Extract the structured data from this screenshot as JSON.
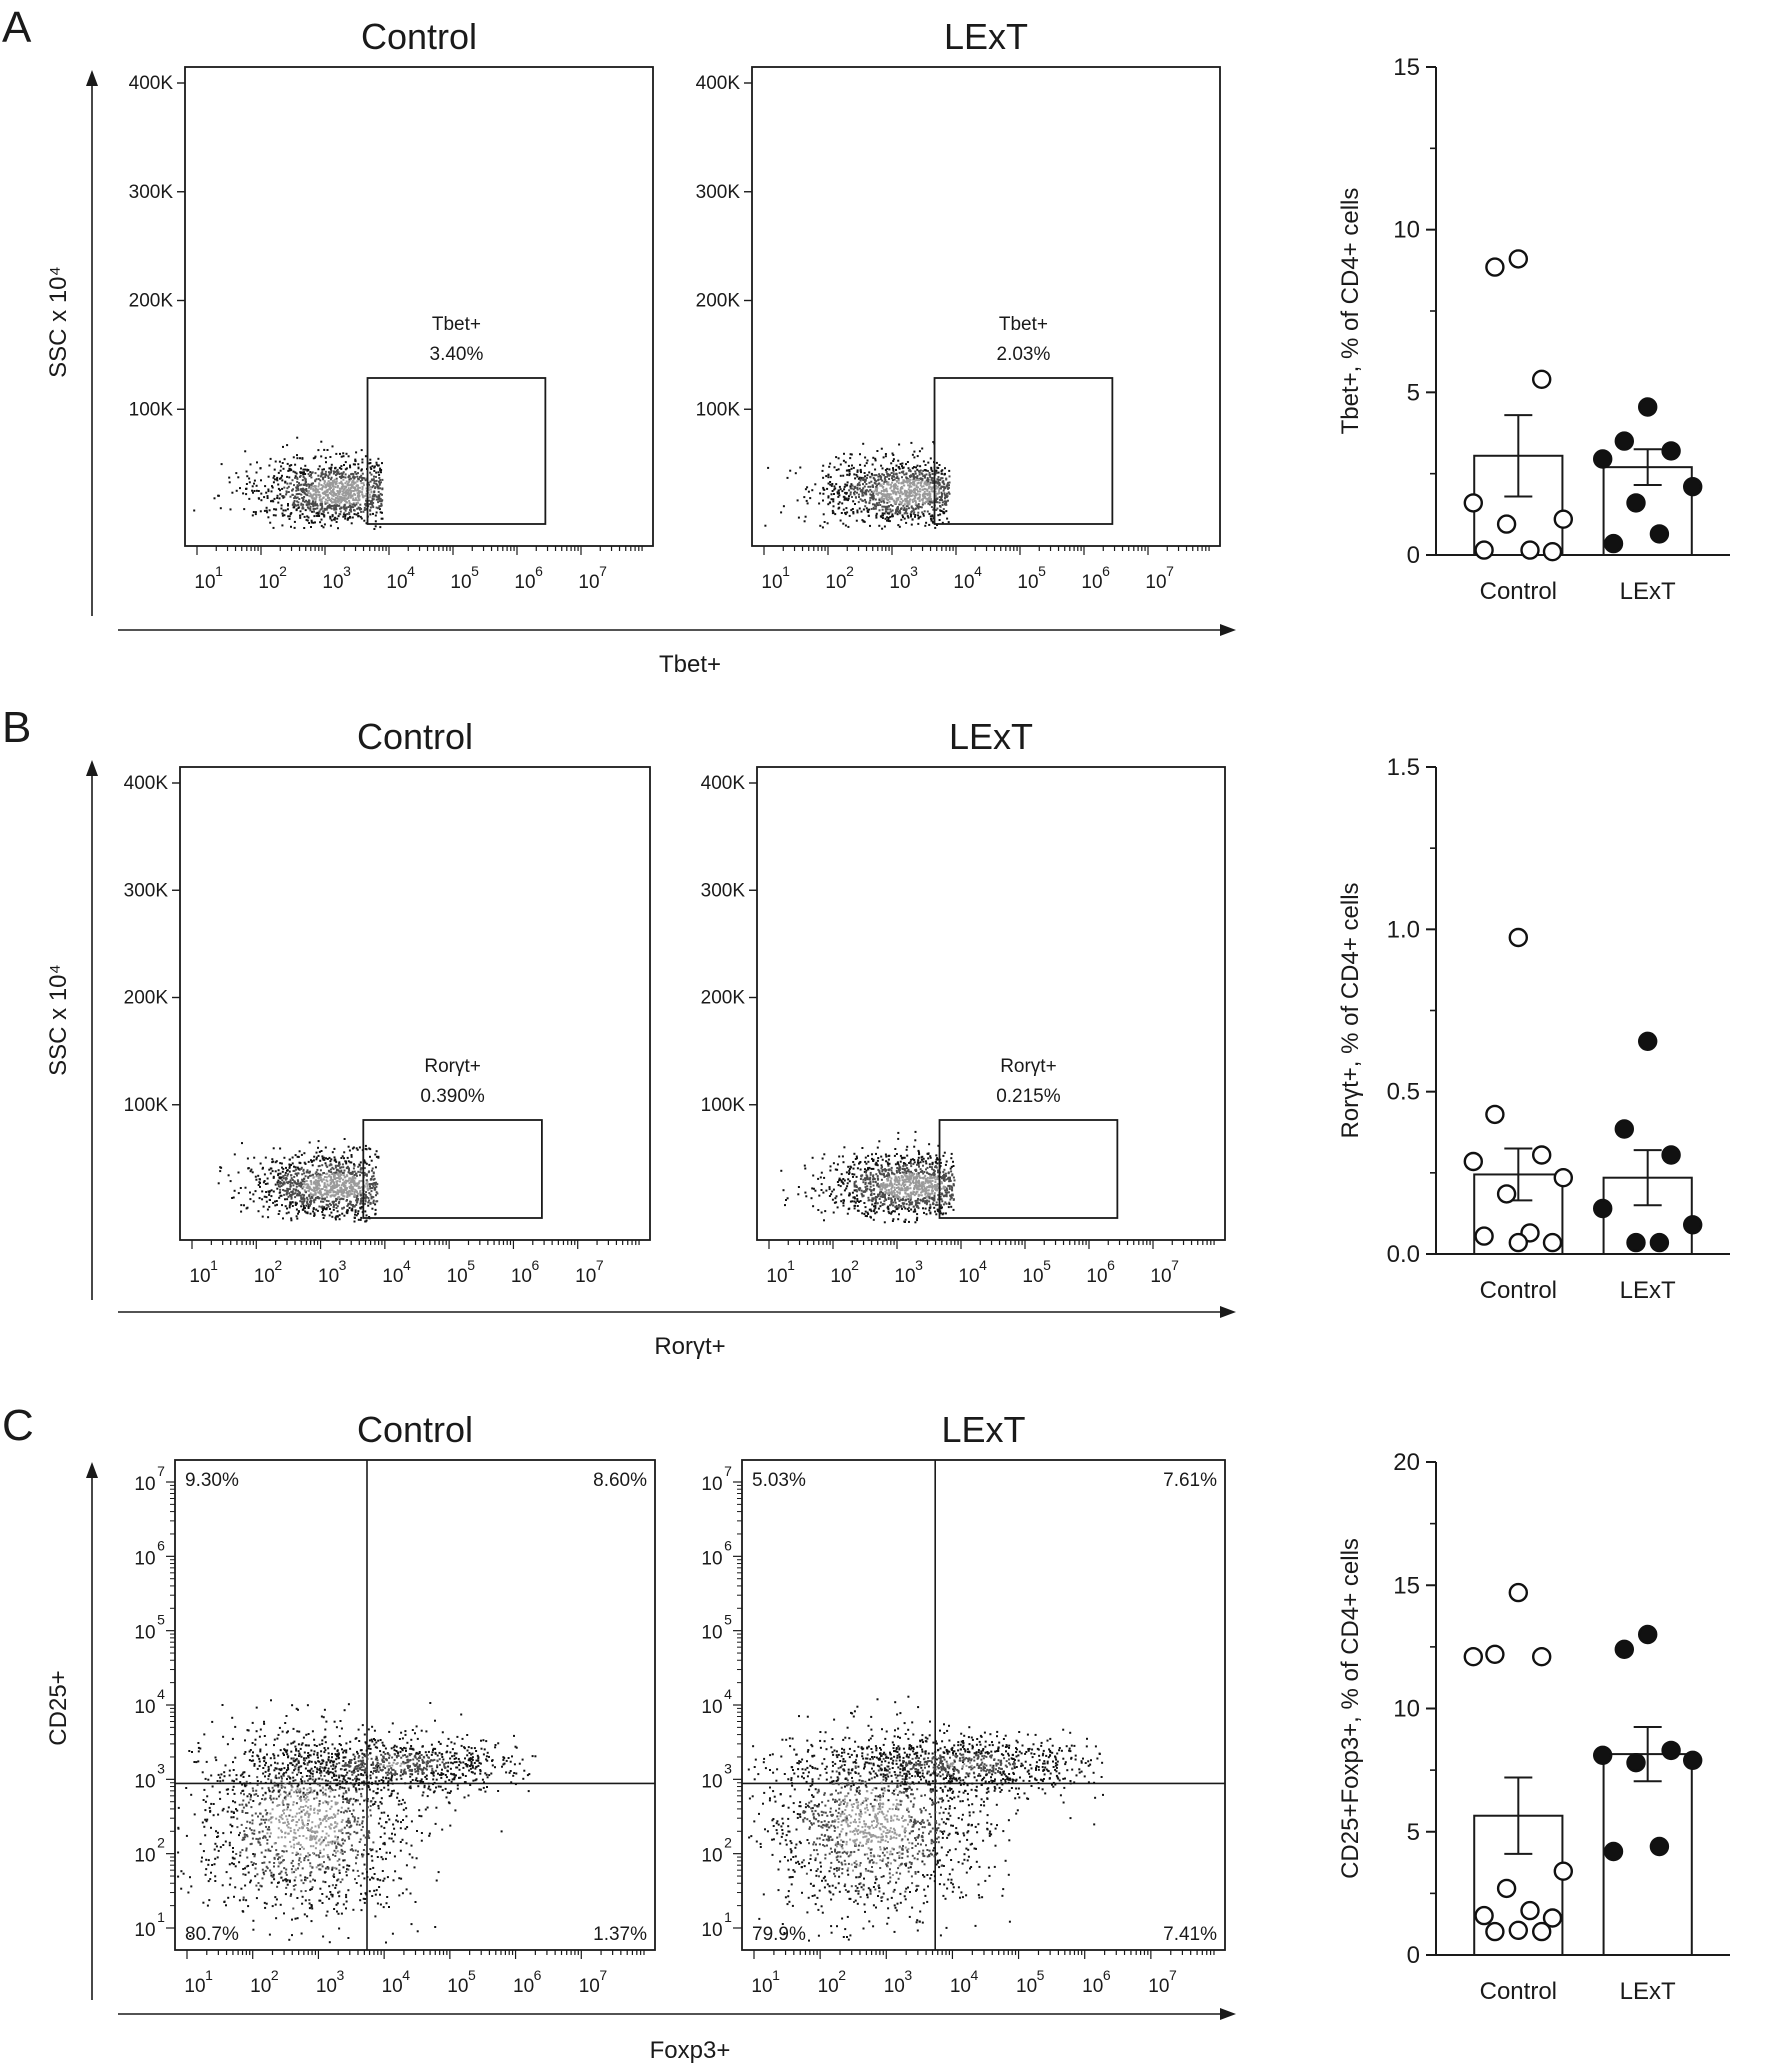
{
  "figure": {
    "panels": [
      {
        "letter": "A",
        "plots": [
          {
            "title": "Control",
            "gate": {
              "name": "Tbet+",
              "value": "3.40%"
            }
          },
          {
            "title": "LExT",
            "gate": {
              "name": "Tbet+",
              "value": "2.03%"
            }
          }
        ],
        "y_axis_title": "SSC x 10⁴",
        "x_axis_title": "Tbet+",
        "y_ticks": [
          "400K",
          "300K",
          "200K",
          "100K"
        ],
        "x_tick_bases": [
          "10",
          "10",
          "10",
          "10",
          "10",
          "10",
          "10"
        ],
        "x_tick_exps": [
          "1",
          "2",
          "3",
          "4",
          "5",
          "6",
          "7"
        ]
      },
      {
        "letter": "B",
        "plots": [
          {
            "title": "Control",
            "gate": {
              "name": "Rorγt+",
              "value": "0.390%"
            }
          },
          {
            "title": "LExT",
            "gate": {
              "name": "Rorγt+",
              "value": "0.215%"
            }
          }
        ],
        "y_axis_title": "SSC x 10⁴",
        "x_axis_title": "Rorγt+",
        "y_ticks": [
          "400K",
          "300K",
          "200K",
          "100K"
        ],
        "x_tick_bases": [
          "10",
          "10",
          "10",
          "10",
          "10",
          "10",
          "10"
        ],
        "x_tick_exps": [
          "1",
          "2",
          "3",
          "4",
          "5",
          "6",
          "7"
        ]
      },
      {
        "letter": "C",
        "plots": [
          {
            "title": "Control",
            "quadrants": {
              "ul": "9.30%",
              "ur": "8.60%",
              "ll": "80.7%",
              "lr": "1.37%"
            }
          },
          {
            "title": "LExT",
            "quadrants": {
              "ul": "5.03%",
              "ur": "7.61%",
              "ll": "79.9%",
              "lr": "7.41%"
            }
          }
        ],
        "y_axis_title": "CD25+",
        "x_axis_title": "Foxp3+",
        "y_tick_bases": [
          "10",
          "10",
          "10",
          "10",
          "10",
          "10",
          "10"
        ],
        "y_tick_exps": [
          "7",
          "6",
          "5",
          "4",
          "3",
          "2",
          "1"
        ],
        "x_tick_bases": [
          "10",
          "10",
          "10",
          "10",
          "10",
          "10",
          "10"
        ],
        "x_tick_exps": [
          "1",
          "2",
          "3",
          "4",
          "5",
          "6",
          "7"
        ]
      }
    ]
  },
  "chart_data": [
    {
      "type": "bar",
      "panel": "A",
      "categories": [
        "Control",
        "LExT"
      ],
      "ylabel": "Tbet+, % of CD4+ cells",
      "ylim": [
        0,
        15
      ],
      "yticks": [
        "0",
        "5",
        "10",
        "15"
      ],
      "series": [
        {
          "name": "Control",
          "mean": 3.05,
          "sem": 1.25,
          "filled": false,
          "points": [
            9.1,
            8.85,
            5.4,
            1.6,
            1.1,
            0.95,
            0.15,
            0.1,
            0.15
          ]
        },
        {
          "name": "LExT",
          "mean": 2.7,
          "sem": 0.55,
          "filled": true,
          "points": [
            4.55,
            3.5,
            3.2,
            2.95,
            2.1,
            1.6,
            0.65,
            0.35
          ]
        }
      ]
    },
    {
      "type": "bar",
      "panel": "B",
      "categories": [
        "Control",
        "LExT"
      ],
      "ylabel": "Rorγt+, % of CD4+ cells",
      "ylim": [
        0,
        1.5
      ],
      "yticks": [
        "0.0",
        "0.5",
        "1.0",
        "1.5"
      ],
      "series": [
        {
          "name": "Control",
          "mean": 0.245,
          "sem": 0.08,
          "filled": false,
          "points": [
            0.975,
            0.43,
            0.305,
            0.285,
            0.235,
            0.185,
            0.065,
            0.035,
            0.035,
            0.055
          ]
        },
        {
          "name": "LExT",
          "mean": 0.235,
          "sem": 0.085,
          "filled": true,
          "points": [
            0.655,
            0.385,
            0.305,
            0.14,
            0.09,
            0.035,
            0.035
          ]
        }
      ]
    },
    {
      "type": "bar",
      "panel": "C",
      "categories": [
        "Control",
        "LExT"
      ],
      "ylabel": "CD25+Foxp3+, % of CD4+ cells",
      "ylim": [
        0,
        20
      ],
      "yticks": [
        "0",
        "5",
        "10",
        "15",
        "20"
      ],
      "series": [
        {
          "name": "Control",
          "mean": 5.65,
          "sem": 1.55,
          "filled": false,
          "points": [
            14.7,
            12.1,
            12.1,
            12.2,
            3.4,
            2.7,
            1.8,
            1.6,
            1.5,
            0.95,
            1.0,
            0.95
          ]
        },
        {
          "name": "LExT",
          "mean": 8.15,
          "sem": 1.1,
          "filled": true,
          "points": [
            13.0,
            12.4,
            8.3,
            8.1,
            7.8,
            7.9,
            4.4,
            4.2
          ]
        }
      ]
    }
  ]
}
